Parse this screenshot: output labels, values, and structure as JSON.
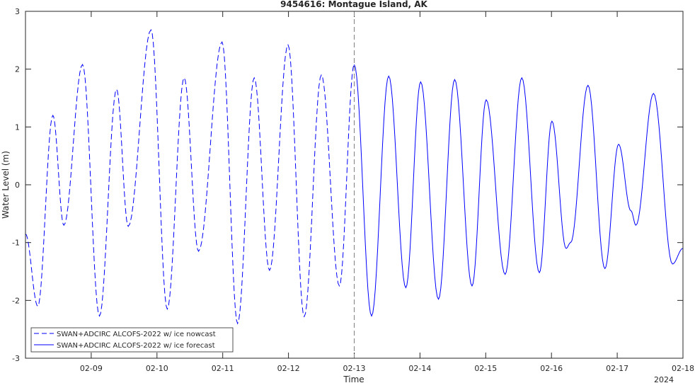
{
  "chart_data": {
    "type": "line",
    "title": "9454616: Montague Island, AK",
    "xlabel": "Time",
    "ylabel": "Water Level (m)",
    "year_label": "2024",
    "xlim": [
      "2024-02-08T00:00",
      "2024-02-18T00:00"
    ],
    "ylim": [
      -3,
      3
    ],
    "x_ticks": [
      {
        "value": "2024-02-09T00:00",
        "label": "02-09"
      },
      {
        "value": "2024-02-10T00:00",
        "label": "02-10"
      },
      {
        "value": "2024-02-11T00:00",
        "label": "02-11"
      },
      {
        "value": "2024-02-12T00:00",
        "label": "02-12"
      },
      {
        "value": "2024-02-13T00:00",
        "label": "02-13"
      },
      {
        "value": "2024-02-14T00:00",
        "label": "02-14"
      },
      {
        "value": "2024-02-15T00:00",
        "label": "02-15"
      },
      {
        "value": "2024-02-16T00:00",
        "label": "02-16"
      },
      {
        "value": "2024-02-17T00:00",
        "label": "02-17"
      },
      {
        "value": "2024-02-18T00:00",
        "label": "02-18"
      }
    ],
    "y_ticks": [
      {
        "value": -3,
        "label": "-3"
      },
      {
        "value": -2,
        "label": "-2"
      },
      {
        "value": -1,
        "label": "-1"
      },
      {
        "value": 0,
        "label": "0"
      },
      {
        "value": 1,
        "label": "1"
      },
      {
        "value": 2,
        "label": "2"
      },
      {
        "value": 3,
        "label": "3"
      }
    ],
    "grid": false,
    "legend_position": "bottom-left",
    "divider_x": "2024-02-13T00:00",
    "series": [
      {
        "name": "SWAN+ADCIRC ALCOFS-2022 w/ ice nowcast",
        "style": "dashed",
        "color": "#0000ff",
        "points": [
          [
            "2024-02-08T00:00",
            -0.85
          ],
          [
            "2024-02-08T04:30",
            -2.1
          ],
          [
            "2024-02-08T10:00",
            1.2
          ],
          [
            "2024-02-08T14:00",
            -0.7
          ],
          [
            "2024-02-08T20:50",
            2.08
          ],
          [
            "2024-02-09T03:00",
            -2.27
          ],
          [
            "2024-02-09T09:15",
            1.65
          ],
          [
            "2024-02-09T13:30",
            -0.72
          ],
          [
            "2024-02-09T21:50",
            2.68
          ],
          [
            "2024-02-10T03:45",
            -2.15
          ],
          [
            "2024-02-10T09:55",
            1.85
          ],
          [
            "2024-02-10T15:10",
            -1.15
          ],
          [
            "2024-02-10T23:45",
            2.47
          ],
          [
            "2024-02-11T05:25",
            -2.4
          ],
          [
            "2024-02-11T11:30",
            1.85
          ],
          [
            "2024-02-11T17:05",
            -1.48
          ],
          [
            "2024-02-11T23:50",
            2.42
          ],
          [
            "2024-02-12T05:45",
            -2.28
          ],
          [
            "2024-02-12T12:00",
            1.9
          ],
          [
            "2024-02-12T18:35",
            -1.75
          ],
          [
            "2024-02-13T00:00",
            2.08
          ]
        ]
      },
      {
        "name": "SWAN+ADCIRC ALCOFS-2022 w/ ice forecast",
        "style": "solid",
        "color": "#0000ff",
        "points": [
          [
            "2024-02-13T00:00",
            2.08
          ],
          [
            "2024-02-13T06:20",
            -2.27
          ],
          [
            "2024-02-13T12:35",
            1.88
          ],
          [
            "2024-02-13T18:50",
            -1.78
          ],
          [
            "2024-02-14T00:15",
            1.78
          ],
          [
            "2024-02-14T06:45",
            -1.98
          ],
          [
            "2024-02-14T12:40",
            1.82
          ],
          [
            "2024-02-14T19:00",
            -1.75
          ],
          [
            "2024-02-15T00:10",
            1.47
          ],
          [
            "2024-02-15T07:05",
            -1.55
          ],
          [
            "2024-02-15T13:10",
            1.85
          ],
          [
            "2024-02-15T19:35",
            -1.52
          ],
          [
            "2024-02-16T00:10",
            1.1
          ],
          [
            "2024-02-16T05:20",
            -1.1
          ],
          [
            "2024-02-16T07:00",
            -1.0
          ],
          [
            "2024-02-16T13:20",
            1.72
          ],
          [
            "2024-02-16T19:30",
            -1.45
          ],
          [
            "2024-02-17T00:30",
            0.7
          ],
          [
            "2024-02-17T05:00",
            -0.45
          ],
          [
            "2024-02-17T06:50",
            -0.7
          ],
          [
            "2024-02-17T13:15",
            1.58
          ],
          [
            "2024-02-17T20:10",
            -1.37
          ],
          [
            "2024-02-18T00:00",
            -1.1
          ]
        ]
      }
    ]
  }
}
